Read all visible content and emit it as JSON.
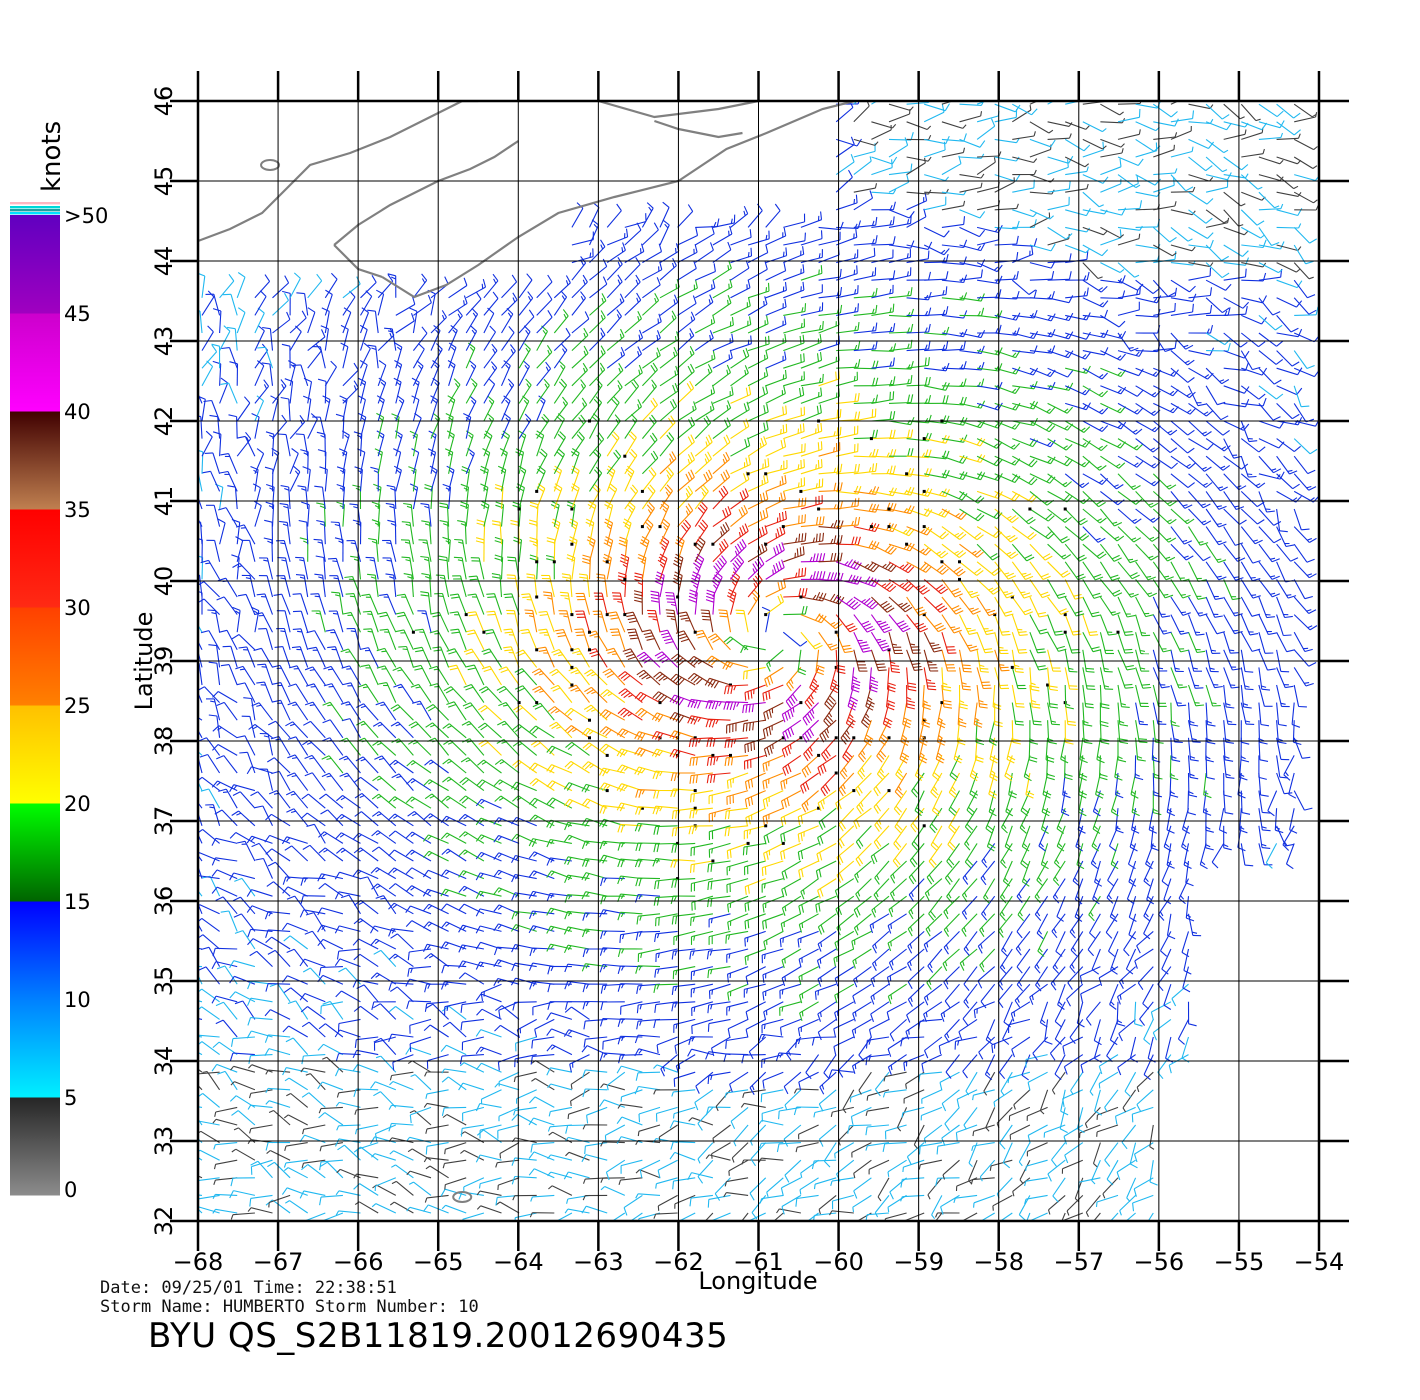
{
  "map": {
    "lon_range": [
      -68,
      -54
    ],
    "lat_range": [
      32,
      46
    ],
    "lon_ticks": [
      -68,
      -67,
      -66,
      -65,
      -64,
      -63,
      -62,
      -61,
      -60,
      -59,
      -58,
      -57,
      -56,
      -55,
      -54
    ],
    "lat_ticks": [
      32,
      33,
      34,
      35,
      36,
      37,
      38,
      39,
      40,
      41,
      42,
      43,
      44,
      45,
      46
    ],
    "lon_tick_labels": [
      "−68",
      "−67",
      "−66",
      "−65",
      "−64",
      "−63",
      "−62",
      "−61",
      "−60",
      "−59",
      "−58",
      "−57",
      "−56",
      "−55",
      "−54"
    ],
    "lat_tick_labels": [
      "32",
      "33",
      "34",
      "35",
      "36",
      "37",
      "38",
      "39",
      "40",
      "41",
      "42",
      "43",
      "44",
      "45",
      "46"
    ],
    "xlabel": "Longitude",
    "ylabel": "Latitude",
    "grid": true,
    "coastline_color": "#808080",
    "storm_center": {
      "lon": -60.8,
      "lat": 39.3
    },
    "max_wind_knots": 45,
    "wind_field_type": "cyclonic wind barbs"
  },
  "colorbar": {
    "unit": "knots",
    "tick_labels": [
      "0",
      "5",
      "10",
      "15",
      "20",
      "25",
      "30",
      "35",
      "40",
      "45",
      ">50"
    ],
    "bands": [
      {
        "from": 0,
        "to": 5,
        "colors": [
          "#8c8c8c",
          "#252525"
        ]
      },
      {
        "from": 5,
        "to": 10,
        "colors": [
          "#00f0ff",
          "#0080ff"
        ]
      },
      {
        "from": 10,
        "to": 15,
        "colors": [
          "#0080ff",
          "#0000ff"
        ]
      },
      {
        "from": 15,
        "to": 20,
        "colors": [
          "#006400",
          "#00ff00"
        ]
      },
      {
        "from": 20,
        "to": 25,
        "colors": [
          "#ffff00",
          "#ffc000"
        ]
      },
      {
        "from": 25,
        "to": 30,
        "colors": [
          "#ff8000",
          "#ff4000"
        ]
      },
      {
        "from": 30,
        "to": 35,
        "colors": [
          "#ff2a14",
          "#ff0000"
        ]
      },
      {
        "from": 35,
        "to": 40,
        "colors": [
          "#c08050",
          "#400000"
        ]
      },
      {
        "from": 40,
        "to": 45,
        "colors": [
          "#ff00ff",
          "#cc00cc"
        ]
      },
      {
        "from": 45,
        "to": 50,
        "colors": [
          "#a000c0",
          "#6000c0"
        ]
      }
    ]
  },
  "footer": {
    "line1": "Date: 09/25/01   Time: 22:38:51",
    "line2": "Storm Name: HUMBERTO   Storm Number: 10",
    "product": "BYU  QS_S2B11819.20012690435"
  }
}
